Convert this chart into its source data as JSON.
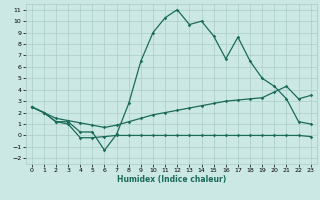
{
  "x": [
    0,
    1,
    2,
    3,
    4,
    5,
    6,
    7,
    8,
    9,
    10,
    11,
    12,
    13,
    14,
    15,
    16,
    17,
    18,
    19,
    20,
    21,
    22,
    23
  ],
  "y_main": [
    2.5,
    2.0,
    1.2,
    1.2,
    0.3,
    0.3,
    -1.3,
    0.1,
    2.8,
    6.5,
    9.0,
    10.3,
    11.0,
    9.7,
    10.0,
    8.7,
    6.7,
    8.6,
    6.5,
    5.0,
    4.3,
    3.2,
    1.2,
    1.0
  ],
  "y_mid": [
    2.5,
    2.0,
    1.5,
    1.3,
    1.1,
    0.9,
    0.7,
    0.9,
    1.2,
    1.5,
    1.8,
    2.0,
    2.2,
    2.4,
    2.6,
    2.8,
    3.0,
    3.1,
    3.2,
    3.3,
    3.8,
    4.3,
    3.2,
    3.5
  ],
  "y_flat": [
    2.5,
    2.0,
    1.2,
    1.0,
    -0.2,
    -0.2,
    -0.1,
    0.0,
    0.0,
    0.0,
    0.0,
    0.0,
    0.0,
    0.0,
    0.0,
    0.0,
    0.0,
    0.0,
    0.0,
    0.0,
    0.0,
    0.0,
    0.0,
    -0.1
  ],
  "bg_color": "#cce8e4",
  "grid_color": "#aaccc8",
  "line_color": "#1a6b5a",
  "xlabel": "Humidex (Indice chaleur)",
  "ylim": [
    -2.5,
    11.5
  ],
  "xlim": [
    -0.5,
    23.5
  ],
  "yticks": [
    -2,
    -1,
    0,
    1,
    2,
    3,
    4,
    5,
    6,
    7,
    8,
    9,
    10,
    11
  ],
  "xticks": [
    0,
    1,
    2,
    3,
    4,
    5,
    6,
    7,
    8,
    9,
    10,
    11,
    12,
    13,
    14,
    15,
    16,
    17,
    18,
    19,
    20,
    21,
    22,
    23
  ]
}
